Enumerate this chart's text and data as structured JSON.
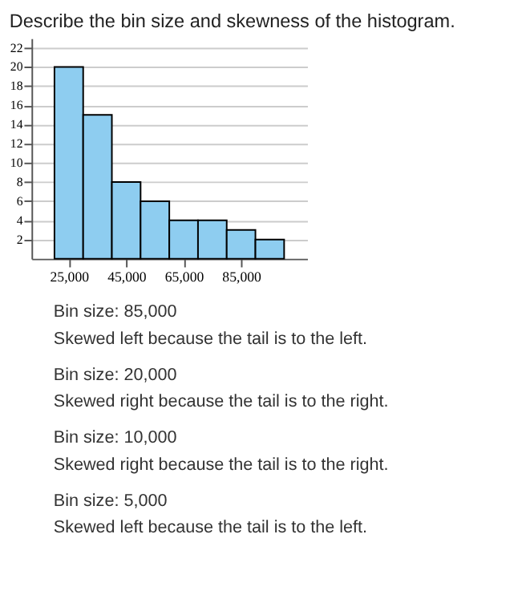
{
  "chart_data": {
    "type": "histogram",
    "title": "Describe the bin size and skewness of the histogram.",
    "bins": [
      20000,
      30000,
      40000,
      50000,
      60000,
      70000,
      80000,
      90000,
      100000
    ],
    "values": [
      20,
      15,
      8,
      6,
      4,
      4,
      3,
      2
    ],
    "color": "#8ecdf0",
    "xlim": [
      12000,
      108000
    ],
    "xticks": [
      {
        "value": 25000,
        "label": "25,000"
      },
      {
        "value": 45000,
        "label": "45,000"
      },
      {
        "value": 65000,
        "label": "65,000"
      },
      {
        "value": 85000,
        "label": "85,000"
      }
    ],
    "ylim": [
      0,
      23
    ],
    "yticks": [
      2,
      4,
      6,
      8,
      10,
      12,
      14,
      16,
      18,
      20,
      22
    ],
    "grid": "y",
    "annotations": [
      "Bin size: 85,000",
      "Skewed left because the tail is to the left.",
      "Bin size: 20,000",
      "Skewed right because the tail is to the right.",
      "Bin size: 10,000",
      "Skewed right because the tail is to the right.",
      "Bin size: 5,000",
      "Skewed left because the tail is to the left."
    ]
  }
}
